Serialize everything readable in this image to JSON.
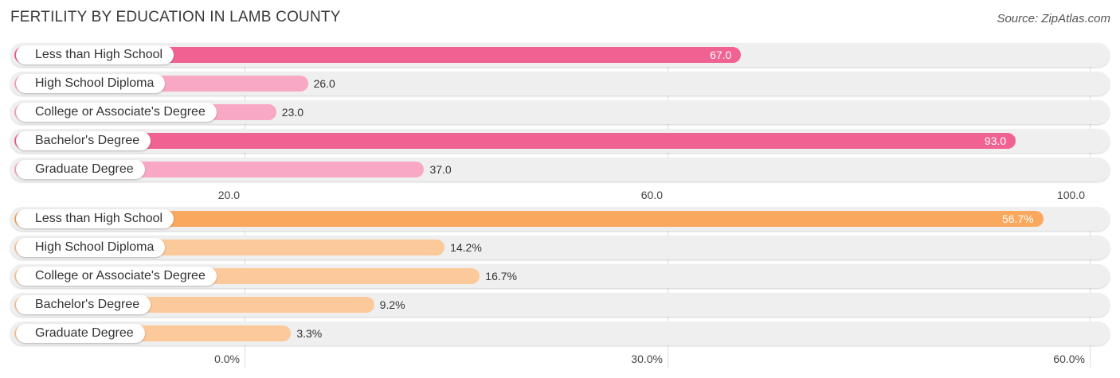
{
  "title": "FERTILITY BY EDUCATION IN LAMB COUNTY",
  "source": "Source: ZipAtlas.com",
  "colors": {
    "pink_dark": "#f06292",
    "pink_light": "#f8a8c4",
    "orange_dark": "#f9a85d",
    "orange_light": "#fbc99a",
    "row_background": "#efefef",
    "grid": "#dddddd"
  },
  "chart_data": [
    {
      "type": "bar",
      "orientation": "horizontal",
      "categories": [
        "Less than High School",
        "High School Diploma",
        "College or Associate's Degree",
        "Bachelor's Degree",
        "Graduate Degree"
      ],
      "values": [
        67.0,
        26.0,
        23.0,
        93.0,
        37.0
      ],
      "value_labels": [
        "67.0",
        "26.0",
        "23.0",
        "93.0",
        "37.0"
      ],
      "highlight": [
        true,
        false,
        false,
        true,
        false
      ],
      "xlim": [
        0,
        100
      ],
      "ticks": [
        20,
        60,
        100
      ],
      "tick_labels": [
        "20.0",
        "60.0",
        "100.0"
      ],
      "grid": true
    },
    {
      "type": "bar",
      "orientation": "horizontal",
      "categories": [
        "Less than High School",
        "High School Diploma",
        "College or Associate's Degree",
        "Bachelor's Degree",
        "Graduate Degree"
      ],
      "values": [
        56.7,
        14.2,
        16.7,
        9.2,
        3.3
      ],
      "value_labels": [
        "56.7%",
        "14.2%",
        "16.7%",
        "9.2%",
        "3.3%"
      ],
      "highlight": [
        true,
        false,
        false,
        false,
        false
      ],
      "xlim": [
        0,
        60
      ],
      "ticks": [
        0,
        30,
        60
      ],
      "tick_labels": [
        "0.0%",
        "30.0%",
        "60.0%"
      ],
      "grid": true
    }
  ]
}
